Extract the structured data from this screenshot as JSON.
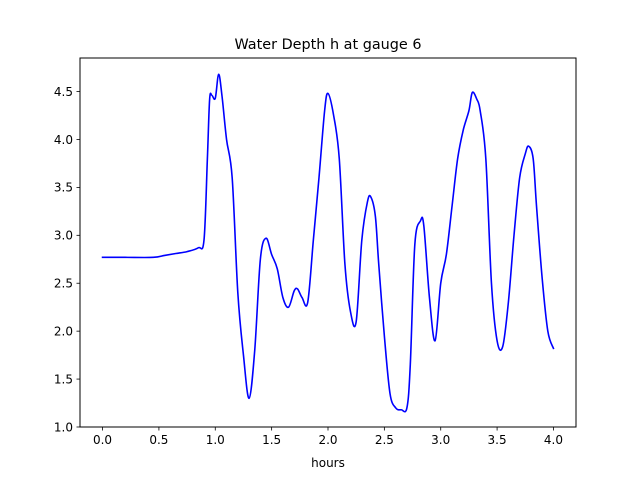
{
  "chart_data": {
    "type": "line",
    "title": "Water Depth h at gauge 6",
    "xlabel": "hours",
    "ylabel": "",
    "xlim": [
      -0.2,
      4.2
    ],
    "ylim": [
      1.0,
      4.85
    ],
    "xticks": [
      0.0,
      0.5,
      1.0,
      1.5,
      2.0,
      2.5,
      3.0,
      3.5,
      4.0
    ],
    "xtick_labels": [
      "0.0",
      "0.5",
      "1.0",
      "1.5",
      "2.0",
      "2.5",
      "3.0",
      "3.5",
      "4.0"
    ],
    "yticks": [
      1.0,
      1.5,
      2.0,
      2.5,
      3.0,
      3.5,
      4.0,
      4.5
    ],
    "ytick_labels": [
      "1.0",
      "1.5",
      "2.0",
      "2.5",
      "3.0",
      "3.5",
      "4.0",
      "4.5"
    ],
    "grid": false,
    "legend": "none",
    "series": [
      {
        "color": "#0000ff",
        "x": [
          0.0,
          0.2,
          0.45,
          0.55,
          0.65,
          0.75,
          0.85,
          0.9,
          0.93,
          0.95,
          0.97,
          1.0,
          1.03,
          1.06,
          1.1,
          1.15,
          1.2,
          1.25,
          1.3,
          1.35,
          1.4,
          1.45,
          1.5,
          1.55,
          1.6,
          1.65,
          1.7,
          1.73,
          1.77,
          1.82,
          1.87,
          1.92,
          1.97,
          2.0,
          2.05,
          2.1,
          2.15,
          2.2,
          2.25,
          2.3,
          2.35,
          2.38,
          2.42,
          2.45,
          2.5,
          2.55,
          2.6,
          2.65,
          2.7,
          2.73,
          2.77,
          2.82,
          2.85,
          2.9,
          2.95,
          3.0,
          3.05,
          3.1,
          3.15,
          3.2,
          3.25,
          3.28,
          3.32,
          3.35,
          3.4,
          3.45,
          3.5,
          3.55,
          3.6,
          3.65,
          3.7,
          3.75,
          3.78,
          3.82,
          3.85,
          3.9,
          3.95,
          4.0
        ],
        "y": [
          2.77,
          2.77,
          2.77,
          2.79,
          2.81,
          2.83,
          2.87,
          2.95,
          3.8,
          4.42,
          4.46,
          4.43,
          4.68,
          4.45,
          4.0,
          3.6,
          2.4,
          1.75,
          1.3,
          1.8,
          2.75,
          2.97,
          2.8,
          2.65,
          2.35,
          2.25,
          2.42,
          2.44,
          2.35,
          2.3,
          2.95,
          3.6,
          4.3,
          4.48,
          4.25,
          3.8,
          2.7,
          2.2,
          2.1,
          2.95,
          3.35,
          3.4,
          3.2,
          2.7,
          1.95,
          1.35,
          1.2,
          1.18,
          1.2,
          1.65,
          2.9,
          3.15,
          3.1,
          2.35,
          1.9,
          2.5,
          2.8,
          3.3,
          3.8,
          4.1,
          4.3,
          4.49,
          4.42,
          4.3,
          3.8,
          2.5,
          1.9,
          1.84,
          2.3,
          3.0,
          3.6,
          3.85,
          3.93,
          3.8,
          3.3,
          2.55,
          2.0,
          1.82
        ]
      }
    ]
  }
}
